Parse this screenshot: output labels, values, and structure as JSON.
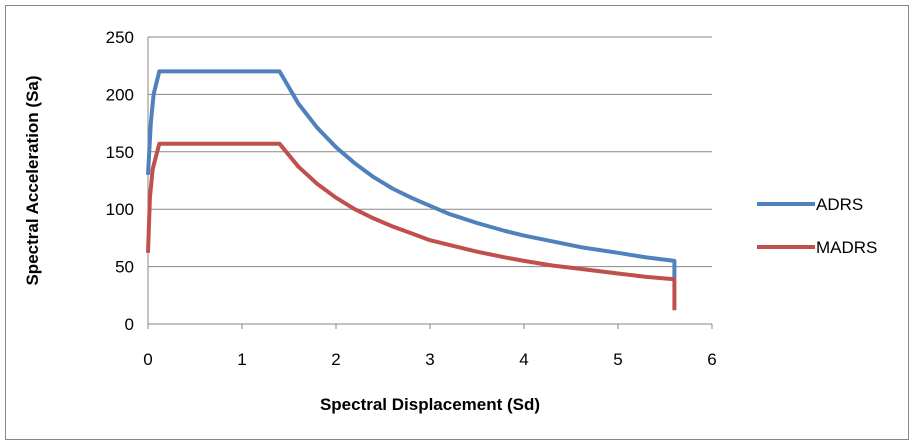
{
  "chart_data": {
    "type": "line",
    "title": "",
    "xlabel": "Spectral Displacement (Sd)",
    "ylabel": "Spectral Acceleration (Sa)",
    "xlim": [
      0,
      6
    ],
    "ylim": [
      0,
      250
    ],
    "x_ticks": [
      0,
      1,
      2,
      3,
      4,
      5,
      6
    ],
    "y_ticks": [
      0,
      50,
      100,
      150,
      200,
      250
    ],
    "grid": "horizontal",
    "legend_position": "right",
    "series": [
      {
        "name": "ADRS",
        "color": "#4F81BD",
        "points": [
          [
            0.0,
            130
          ],
          [
            0.03,
            175
          ],
          [
            0.06,
            200
          ],
          [
            0.12,
            220
          ],
          [
            1.4,
            220
          ],
          [
            1.6,
            192
          ],
          [
            1.8,
            171
          ],
          [
            2.0,
            154
          ],
          [
            2.2,
            140
          ],
          [
            2.4,
            128
          ],
          [
            2.6,
            118
          ],
          [
            2.8,
            110
          ],
          [
            3.0,
            103
          ],
          [
            3.2,
            96
          ],
          [
            3.5,
            88
          ],
          [
            3.8,
            81
          ],
          [
            4.0,
            77
          ],
          [
            4.3,
            72
          ],
          [
            4.6,
            67
          ],
          [
            5.0,
            62
          ],
          [
            5.3,
            58
          ],
          [
            5.6,
            55
          ],
          [
            5.6,
            40
          ]
        ]
      },
      {
        "name": "MADRS",
        "color": "#C0504D",
        "points": [
          [
            0.0,
            62
          ],
          [
            0.02,
            110
          ],
          [
            0.05,
            135
          ],
          [
            0.12,
            157
          ],
          [
            1.4,
            157
          ],
          [
            1.6,
            137
          ],
          [
            1.8,
            122
          ],
          [
            2.0,
            110
          ],
          [
            2.2,
            100
          ],
          [
            2.4,
            92
          ],
          [
            2.6,
            85
          ],
          [
            2.8,
            79
          ],
          [
            3.0,
            73
          ],
          [
            3.2,
            69
          ],
          [
            3.5,
            63
          ],
          [
            3.8,
            58
          ],
          [
            4.0,
            55
          ],
          [
            4.3,
            51
          ],
          [
            4.6,
            48
          ],
          [
            5.0,
            44
          ],
          [
            5.3,
            41
          ],
          [
            5.6,
            39
          ],
          [
            5.6,
            12
          ]
        ]
      }
    ]
  }
}
